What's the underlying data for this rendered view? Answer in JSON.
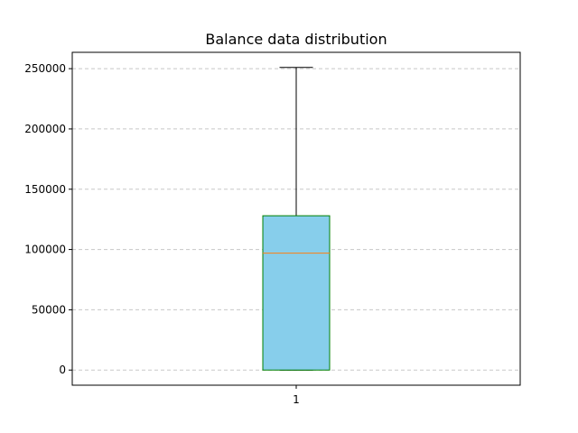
{
  "chart_data": {
    "type": "box",
    "title": "Balance data distribution",
    "xlabel": "",
    "ylabel": "",
    "categories": [
      "1"
    ],
    "box": {
      "whisker_low": 0,
      "q1": 0,
      "median": 97000,
      "q3": 128000,
      "whisker_high": 251000
    },
    "ylim": [
      -12550,
      263550
    ],
    "yticks": [
      0,
      50000,
      100000,
      150000,
      200000,
      250000
    ],
    "ytick_labels": [
      "0",
      "50000",
      "100000",
      "150000",
      "200000",
      "250000"
    ],
    "grid": "horizontal-dashed",
    "colors": {
      "box_fill": "#87CEEB",
      "box_edge": "#008000",
      "median": "#FF7F0E",
      "whisker": "#000000",
      "grid": "#c8c8c8"
    }
  }
}
